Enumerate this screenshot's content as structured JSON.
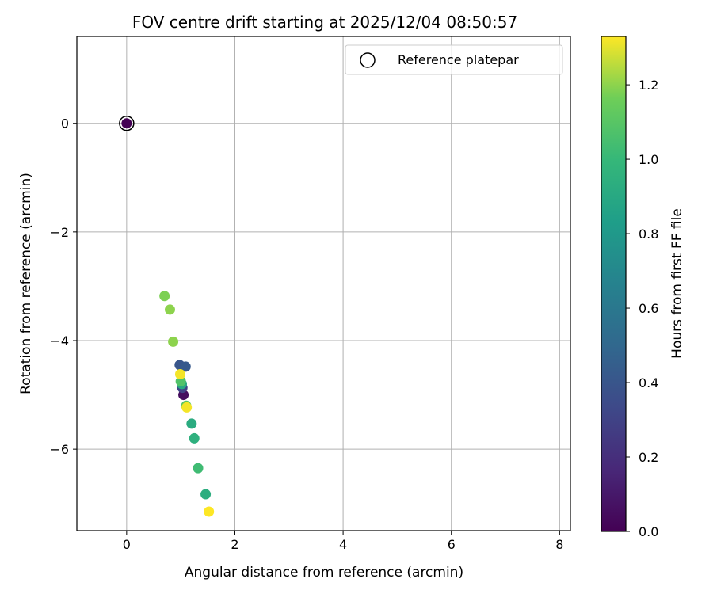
{
  "chart_data": {
    "type": "scatter",
    "title": "FOV centre drift starting at 2025/12/04 08:50:57",
    "xlabel": "Angular distance from reference (arcmin)",
    "ylabel": "Rotation from reference (arcmin)",
    "xlim": [
      -0.92,
      8.2
    ],
    "ylim": [
      -7.5,
      1.6
    ],
    "xticks": [
      0,
      2,
      4,
      6,
      8
    ],
    "yticks": [
      0,
      -2,
      -4,
      -6
    ],
    "xtick_labels": [
      "0",
      "2",
      "4",
      "6",
      "8"
    ],
    "ytick_labels": [
      "0",
      "−2",
      "−4",
      "−6"
    ],
    "grid": true,
    "legend": {
      "position": "top-right",
      "label": "Reference platepar"
    },
    "reference_point": {
      "x": 0.0,
      "y": 0.0
    },
    "colorbar": {
      "label": "Hours from first FF file",
      "colormap": "viridis",
      "range": [
        0.0,
        1.33
      ],
      "ticks": [
        0.0,
        0.2,
        0.4,
        0.6,
        0.8,
        1.0,
        1.2
      ],
      "tick_labels": [
        "0.0",
        "0.2",
        "0.4",
        "0.6",
        "0.8",
        "1.0",
        "1.2"
      ]
    },
    "points": [
      {
        "x": 0.0,
        "y": 0.0,
        "t": 0.0
      },
      {
        "x": 1.05,
        "y": -5.0,
        "t": 0.05
      },
      {
        "x": 1.03,
        "y": -4.87,
        "t": 0.3
      },
      {
        "x": 0.98,
        "y": -4.45,
        "t": 0.4
      },
      {
        "x": 1.09,
        "y": -4.48,
        "t": 0.42
      },
      {
        "x": 1.02,
        "y": -4.8,
        "t": 0.9
      },
      {
        "x": 1.2,
        "y": -5.53,
        "t": 0.92
      },
      {
        "x": 1.25,
        "y": -5.8,
        "t": 0.95
      },
      {
        "x": 1.46,
        "y": -6.83,
        "t": 0.93
      },
      {
        "x": 1.32,
        "y": -6.35,
        "t": 1.03
      },
      {
        "x": 1.0,
        "y": -4.75,
        "t": 1.08
      },
      {
        "x": 1.1,
        "y": -5.2,
        "t": 1.1
      },
      {
        "x": 0.7,
        "y": -3.18,
        "t": 1.18
      },
      {
        "x": 0.8,
        "y": -3.43,
        "t": 1.2
      },
      {
        "x": 0.86,
        "y": -4.02,
        "t": 1.2
      },
      {
        "x": 0.99,
        "y": -4.62,
        "t": 1.32
      },
      {
        "x": 1.11,
        "y": -5.23,
        "t": 1.32
      },
      {
        "x": 1.52,
        "y": -7.15,
        "t": 1.33
      }
    ]
  }
}
